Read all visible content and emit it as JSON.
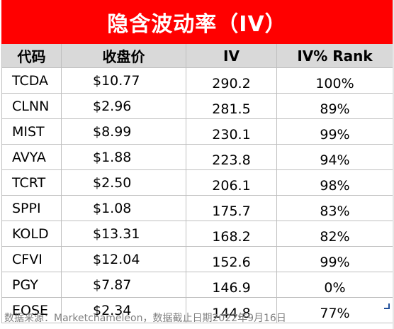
{
  "title": "隐含波动率（IV）",
  "headers": {
    "ticker": "代码",
    "price": "收盘价",
    "iv": "IV",
    "rank": "IV% Rank"
  },
  "rows": [
    {
      "ticker": "TCDA",
      "price": "$10.77",
      "iv": "290.2",
      "rank": "100%"
    },
    {
      "ticker": "CLNN",
      "price": "$2.96",
      "iv": "281.5",
      "rank": "89%"
    },
    {
      "ticker": "MIST",
      "price": "$8.99",
      "iv": "230.1",
      "rank": "99%"
    },
    {
      "ticker": "AVYA",
      "price": "$1.88",
      "iv": "223.8",
      "rank": "94%"
    },
    {
      "ticker": "TCRT",
      "price": "$2.50",
      "iv": "206.1",
      "rank": "98%"
    },
    {
      "ticker": "SPPI",
      "price": "$1.08",
      "iv": "175.7",
      "rank": "83%"
    },
    {
      "ticker": "KOLD",
      "price": "$13.31",
      "iv": "168.2",
      "rank": "82%"
    },
    {
      "ticker": "CFVI",
      "price": "$12.04",
      "iv": "152.6",
      "rank": "99%"
    },
    {
      "ticker": "PGY",
      "price": "$7.87",
      "iv": "146.9",
      "rank": "0%"
    },
    {
      "ticker": "EOSE",
      "price": "$2.34",
      "iv": "144.8",
      "rank": "77%"
    }
  ],
  "footer": "数据来源：Marketchameleon，数据截止日期2022年9月16日",
  "colors": {
    "title_bg": "#ff0000",
    "header_bg": "#d9d9d9",
    "footer_text": "#7f7f7f"
  }
}
